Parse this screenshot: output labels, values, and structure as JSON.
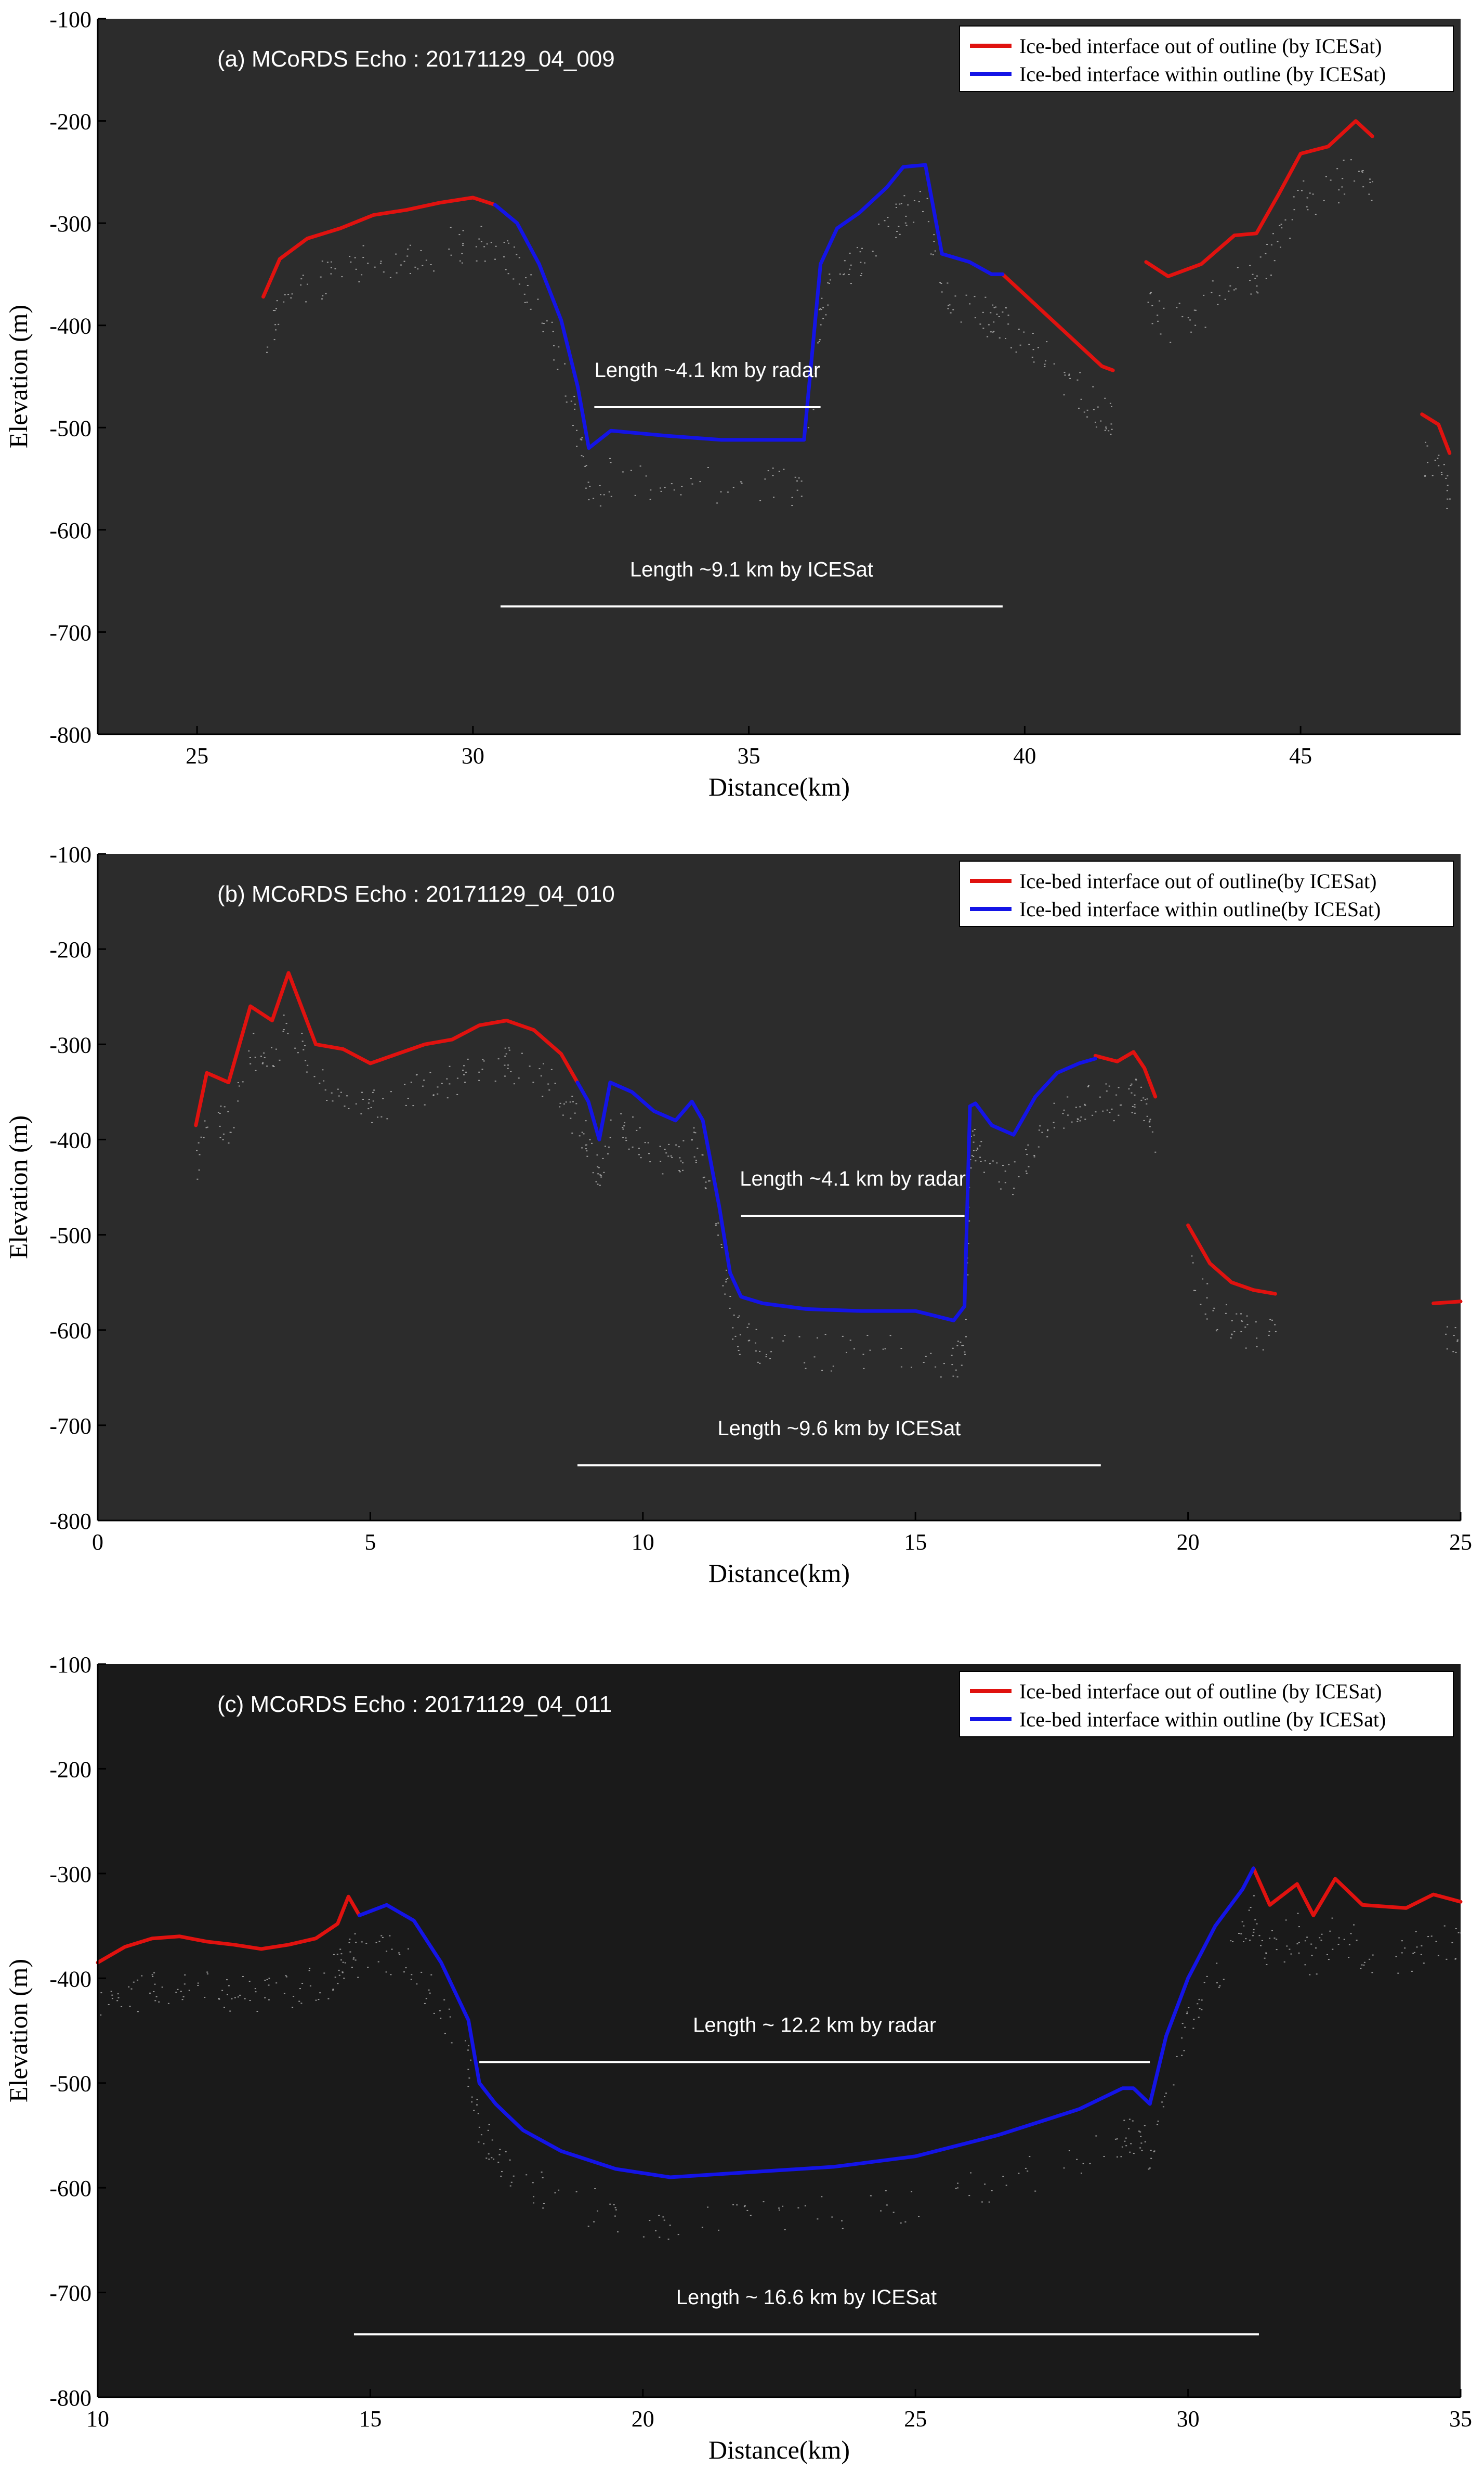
{
  "colors": {
    "out_of_outline": "#e0120f",
    "within_outline": "#1414e6",
    "echo": "#ffffff",
    "annotation": "#ffffff"
  },
  "chart_data": [
    {
      "type": "line",
      "title": "(a) MCoRDS Echo :  20171129_04_009",
      "xlabel": "Distance(km)",
      "ylabel": "Elevation (m)",
      "xlim": [
        23.2,
        47.9
      ],
      "ylim": [
        -800,
        -100
      ],
      "xticks": [
        25,
        30,
        35,
        40,
        45
      ],
      "yticks": [
        -100,
        -200,
        -300,
        -400,
        -500,
        -600,
        -700,
        -800
      ],
      "background": "#2c2c2c",
      "legend": {
        "placement": "top-right",
        "entries": [
          "Ice-bed interface out of outline (by ICESat)",
          "Ice-bed interface within outline (by ICESat)"
        ]
      },
      "series": [
        {
          "name": "Ice-bed interface out of outline (by ICESat)",
          "color_key": "out_of_outline",
          "segments": [
            {
              "x": [
                26.2,
                26.5,
                27.0,
                27.6,
                28.2,
                28.8,
                29.4,
                30.0,
                30.4
              ],
              "y": [
                -372,
                -335,
                -315,
                -305,
                -292,
                -287,
                -280,
                -275,
                -282
              ]
            },
            {
              "x": [
                39.6,
                40.0,
                40.5,
                41.0,
                41.4,
                41.6
              ],
              "y": [
                -350,
                -370,
                -395,
                -420,
                -440,
                -444
              ]
            },
            {
              "x": [
                42.2,
                42.6,
                43.2,
                43.8,
                44.2,
                44.6,
                45.0,
                45.5,
                46.0,
                46.3
              ],
              "y": [
                -338,
                -352,
                -340,
                -312,
                -310,
                -272,
                -232,
                -225,
                -200,
                -215
              ]
            },
            {
              "x": [
                47.2,
                47.5,
                47.7
              ],
              "y": [
                -487,
                -497,
                -525
              ]
            }
          ]
        },
        {
          "name": "Ice-bed interface within outline (by ICESat)",
          "color_key": "within_outline",
          "segments": [
            {
              "x": [
                30.4,
                30.8,
                31.2,
                31.6,
                31.9,
                32.1,
                32.5,
                33.5,
                34.5,
                35.5,
                36.0,
                36.3,
                36.6,
                37.0,
                37.5,
                37.8,
                38.2,
                38.5,
                39.0,
                39.4,
                39.6
              ],
              "y": [
                -282,
                -300,
                -340,
                -395,
                -460,
                -520,
                -503,
                -508,
                -512,
                -512,
                -512,
                -340,
                -305,
                -290,
                -265,
                -245,
                -243,
                -330,
                -338,
                -350,
                -350
              ]
            }
          ]
        }
      ],
      "annotations": [
        {
          "text": "Length ~4.1 km by radar",
          "x1": 32.2,
          "x2": 36.3,
          "y": -480
        },
        {
          "text": "Length ~9.1 km by ICESat",
          "x1": 30.5,
          "x2": 39.6,
          "y": -675
        }
      ]
    },
    {
      "type": "line",
      "title": "(b) MCoRDS Echo :  20171129_04_010",
      "xlabel": "Distance(km)",
      "ylabel": "Elevation (m)",
      "xlim": [
        0,
        25
      ],
      "ylim": [
        -800,
        -100
      ],
      "xticks": [
        0,
        5,
        10,
        15,
        20,
        25
      ],
      "yticks": [
        -100,
        -200,
        -300,
        -400,
        -500,
        -600,
        -700,
        -800
      ],
      "background": "#2c2c2c",
      "legend": {
        "placement": "top-right",
        "entries": [
          "Ice-bed interface out of outline(by  ICESat)",
          "Ice-bed interface within outline(by  ICESat)"
        ]
      },
      "series": [
        {
          "name": "Ice-bed interface out of outline(by  ICESat)",
          "color_key": "out_of_outline",
          "segments": [
            {
              "x": [
                1.8,
                2.0,
                2.4,
                2.8,
                3.2,
                3.5,
                4.0,
                4.5,
                5.0,
                5.5,
                6.0,
                6.5,
                7.0,
                7.5,
                8.0,
                8.5,
                8.8
              ],
              "y": [
                -385,
                -330,
                -340,
                -260,
                -275,
                -225,
                -300,
                -305,
                -320,
                -310,
                -300,
                -295,
                -280,
                -275,
                -285,
                -310,
                -340
              ]
            },
            {
              "x": [
                18.3,
                18.7,
                19.0,
                19.2,
                19.4
              ],
              "y": [
                -312,
                -318,
                -308,
                -325,
                -355
              ]
            },
            {
              "x": [
                20.0,
                20.4,
                20.8,
                21.2,
                21.6
              ],
              "y": [
                -490,
                -530,
                -550,
                -558,
                -562
              ]
            },
            {
              "x": [
                24.5,
                25.0
              ],
              "y": [
                -572,
                -570
              ]
            }
          ]
        },
        {
          "name": "Ice-bed interface within outline(by  ICESat)",
          "color_key": "within_outline",
          "segments": [
            {
              "x": [
                8.8,
                9.0,
                9.2,
                9.4,
                9.8,
                10.2,
                10.6,
                10.9,
                11.1,
                11.4,
                11.6,
                11.8,
                12.2,
                13.0,
                14.0,
                15.0,
                15.7,
                15.9,
                16.0,
                16.1,
                16.4,
                16.8,
                17.2,
                17.6,
                18.0,
                18.3
              ],
              "y": [
                -340,
                -360,
                -400,
                -340,
                -350,
                -370,
                -380,
                -360,
                -380,
                -470,
                -540,
                -565,
                -572,
                -578,
                -580,
                -580,
                -590,
                -575,
                -365,
                -362,
                -385,
                -395,
                -355,
                -330,
                -320,
                -315
              ]
            }
          ]
        }
      ],
      "annotations": [
        {
          "text": "Length ~4.1 km by radar",
          "x1": 11.8,
          "x2": 15.9,
          "y": -480
        },
        {
          "text": "Length ~9.6 km by ICESat",
          "x1": 8.8,
          "x2": 18.4,
          "y": -742
        }
      ]
    },
    {
      "type": "line",
      "title": "(c) MCoRDS Echo :  20171129_04_011",
      "xlabel": "Distance(km)",
      "ylabel": "Elevation (m)",
      "xlim": [
        10,
        35
      ],
      "ylim": [
        -800,
        -100
      ],
      "xticks": [
        10,
        15,
        20,
        25,
        30,
        35
      ],
      "yticks": [
        -100,
        -200,
        -300,
        -400,
        -500,
        -600,
        -700,
        -800
      ],
      "background": "#1a1a1a",
      "legend": {
        "placement": "top-right",
        "entries": [
          "Ice-bed interface out of outline (by ICESat)",
          "Ice-bed interface within outline (by ICESat)"
        ]
      },
      "series": [
        {
          "name": "Ice-bed interface out of outline (by ICESat)",
          "color_key": "out_of_outline",
          "segments": [
            {
              "x": [
                10.0,
                10.5,
                11.0,
                11.5,
                12.0,
                12.5,
                13.0,
                13.5,
                14.0,
                14.4,
                14.6,
                14.8
              ],
              "y": [
                -385,
                -370,
                -362,
                -360,
                -365,
                -368,
                -372,
                -368,
                -362,
                -348,
                -322,
                -340
              ]
            },
            {
              "x": [
                31.2,
                31.5,
                32.0,
                32.3,
                32.7,
                33.2,
                34.0,
                34.5,
                35.0
              ],
              "y": [
                -295,
                -330,
                -310,
                -340,
                -305,
                -330,
                -333,
                -320,
                -327
              ]
            }
          ]
        },
        {
          "name": "Ice-bed interface within outline (by ICESat)",
          "color_key": "within_outline",
          "segments": [
            {
              "x": [
                14.8,
                15.3,
                15.8,
                16.3,
                16.8,
                17.0,
                17.3,
                17.8,
                18.5,
                19.5,
                20.5,
                22.0,
                23.5,
                25.0,
                26.5,
                28.0,
                28.8,
                29.0,
                29.3,
                29.6,
                30.0,
                30.5,
                31.0,
                31.2
              ],
              "y": [
                -340,
                -330,
                -345,
                -385,
                -440,
                -500,
                -520,
                -545,
                -565,
                -582,
                -590,
                -585,
                -580,
                -570,
                -550,
                -525,
                -505,
                -505,
                -520,
                -455,
                -400,
                -350,
                -315,
                -295
              ]
            }
          ]
        }
      ],
      "annotations": [
        {
          "text": "Length ~ 12.2 km by radar",
          "x1": 17.0,
          "x2": 29.3,
          "y": -480
        },
        {
          "text": "Length ~ 16.6 km by ICESat",
          "x1": 14.7,
          "x2": 31.3,
          "y": -740
        }
      ]
    }
  ]
}
